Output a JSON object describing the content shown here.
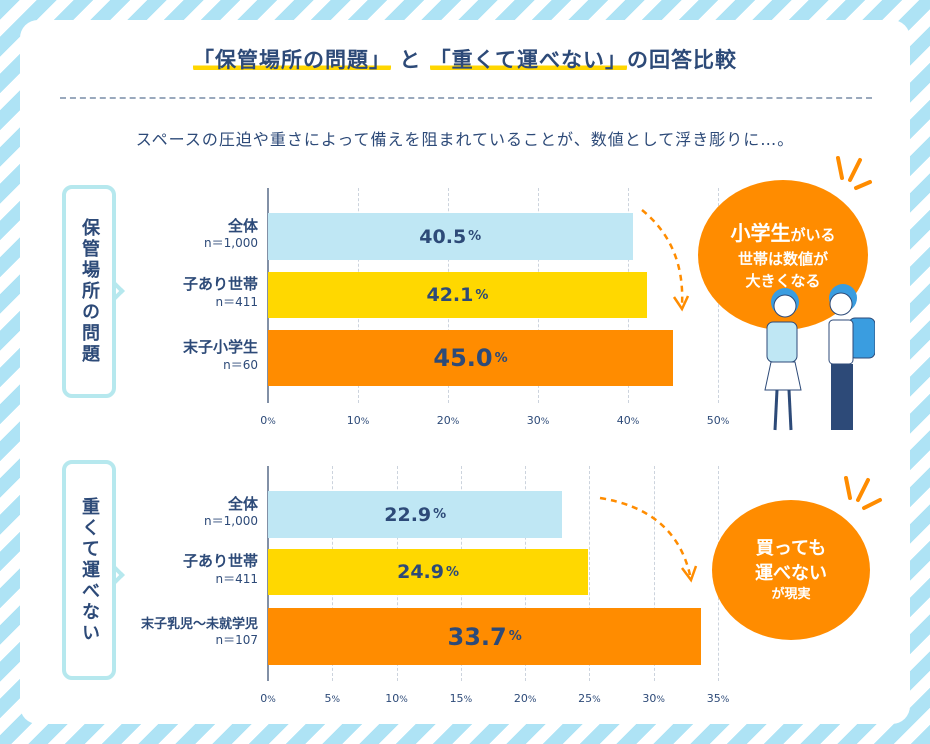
{
  "title": {
    "part1": "「保管場所の問題」",
    "mid": "と",
    "part2": "「重くて運べない」",
    "end": "の回答比較"
  },
  "subtitle": "スペースの圧迫や重さによって備えを阻まれていることが、数値として浮き彫りに…。",
  "bubble1": {
    "strong": "小学生",
    "line1": "がいる",
    "line2": "世帯は数値が",
    "line3": "大きくなる"
  },
  "bubble2": {
    "line1": "買っても",
    "line2": "運べない",
    "line3": "が現実"
  },
  "colors": {
    "all": "#bfe7f4",
    "kids": "#ffd800",
    "target": "#ff8c00",
    "text": "#2d4a78"
  },
  "chart_data": [
    {
      "type": "bar",
      "orientation": "horizontal",
      "title": "保管場所の問題",
      "categories": [
        {
          "label": "全体",
          "n": "n＝1,000"
        },
        {
          "label": "子あり世帯",
          "n": "n＝411"
        },
        {
          "label": "末子小学生",
          "n": "n＝60"
        }
      ],
      "values": [
        40.5,
        42.1,
        45.0
      ],
      "labels": [
        "40.5",
        "42.1",
        "45.0"
      ],
      "unit": "%",
      "xlim": [
        0,
        50
      ],
      "ticks": [
        0,
        10,
        20,
        30,
        40,
        50
      ]
    },
    {
      "type": "bar",
      "orientation": "horizontal",
      "title": "重くて運べない",
      "categories": [
        {
          "label": "全体",
          "n": "n＝1,000"
        },
        {
          "label": "子あり世帯",
          "n": "n＝411"
        },
        {
          "label": "末子乳児〜未就学児",
          "n": "n＝107"
        }
      ],
      "values": [
        22.9,
        24.9,
        33.7
      ],
      "labels": [
        "22.9",
        "24.9",
        "33.7"
      ],
      "unit": "%",
      "xlim": [
        0,
        35
      ],
      "ticks": [
        0,
        5,
        10,
        15,
        20,
        25,
        30,
        35
      ]
    }
  ]
}
